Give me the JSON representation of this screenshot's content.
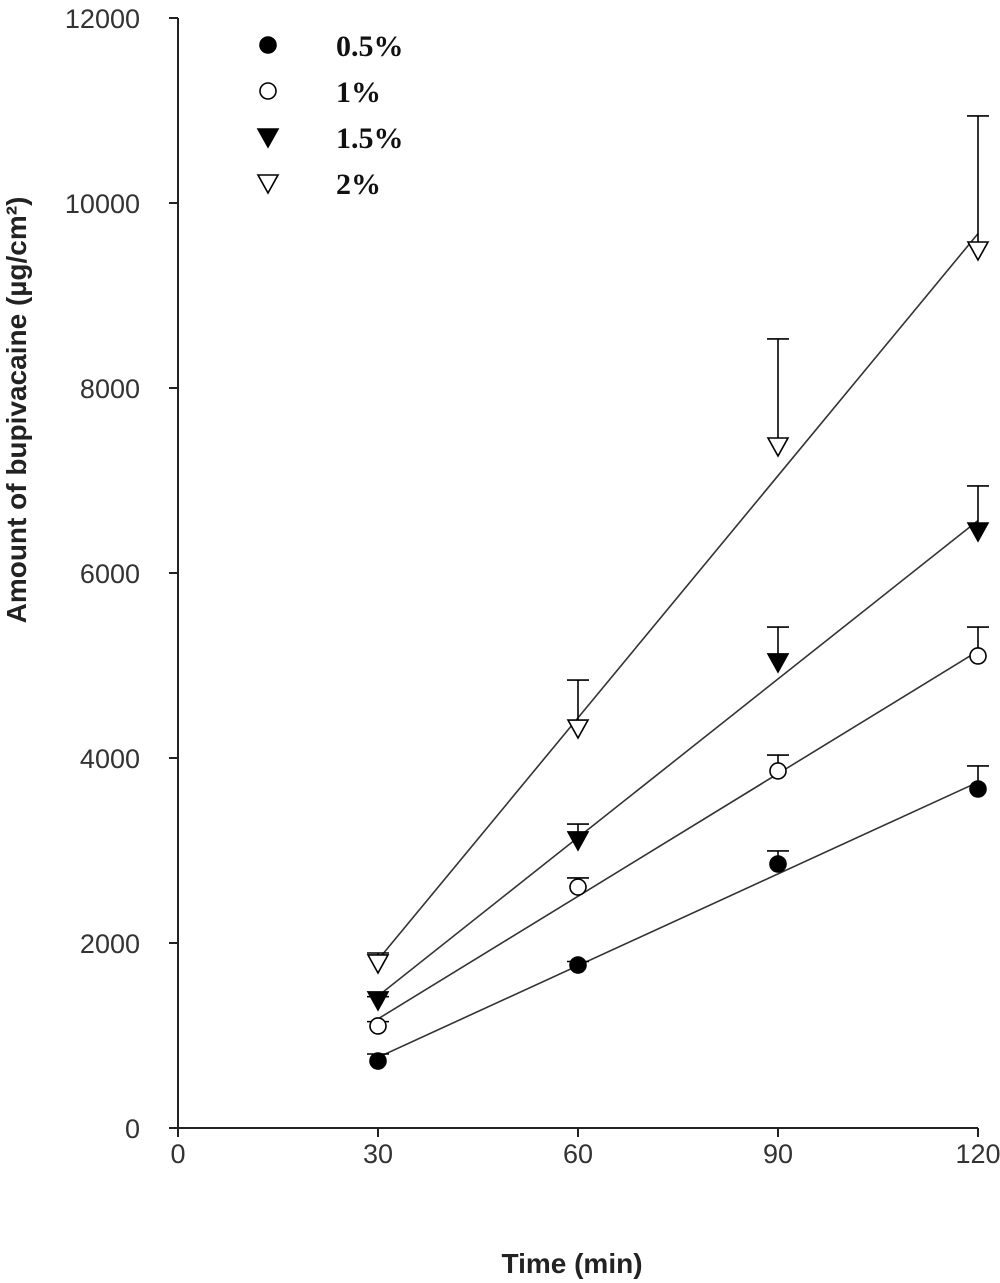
{
  "chart_data": {
    "type": "scatter",
    "title": "",
    "xlabel": "Time (min)",
    "ylabel": "Amount of bupivacaine (µg/cm²)",
    "xlim": [
      0,
      120
    ],
    "ylim": [
      0,
      12000
    ],
    "xticks": [
      "0",
      "30",
      "60",
      "90",
      "120"
    ],
    "yticks": [
      "0",
      "2000",
      "4000",
      "6000",
      "8000",
      "10000",
      "12000"
    ],
    "grid": false,
    "legend_position": "top-left",
    "x": [
      30,
      60,
      90,
      120
    ],
    "series": [
      {
        "name": "0.5%",
        "marker": "filled-circle",
        "values": [
          724,
          1762,
          2854,
          3665
        ],
        "error_upper": [
          800,
          1800,
          2995,
          3914
        ]
      },
      {
        "name": "1%",
        "marker": "open-circle",
        "values": [
          1103,
          2605,
          3860,
          5103
        ],
        "error_upper": [
          1150,
          2703,
          4032,
          5416
        ]
      },
      {
        "name": "1.5%",
        "marker": "filled-triangle-down",
        "values": [
          1384,
          3114,
          5038,
          6454
        ],
        "error_upper": [
          1420,
          3286,
          5416,
          6941
        ]
      },
      {
        "name": "2%",
        "marker": "open-triangle-down",
        "values": [
          1784,
          4324,
          7373,
          9492
        ],
        "error_upper": [
          1892,
          4843,
          8530,
          10941
        ]
      }
    ],
    "trendlines": "linear fit per series"
  }
}
